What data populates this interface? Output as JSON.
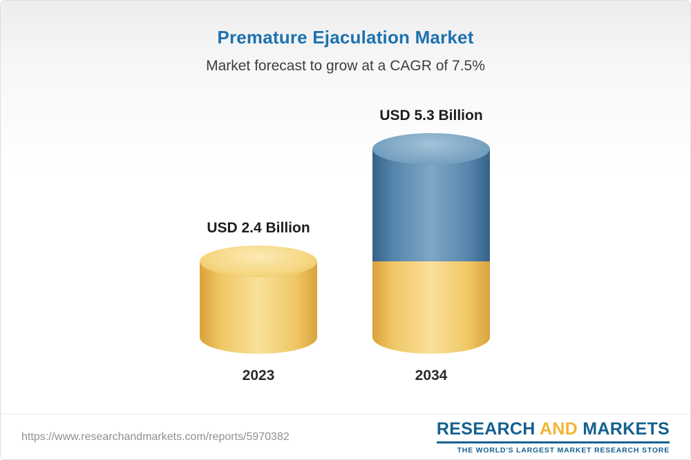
{
  "header": {
    "title": "Premature Ejaculation Market",
    "subtitle": "Market forecast to grow at a CAGR of 7.5%"
  },
  "chart_data": {
    "type": "bar",
    "title": "Premature Ejaculation Market",
    "subtitle": "Market forecast to grow at a CAGR of 7.5%",
    "unit": "USD Billion",
    "cagr_percent": 7.5,
    "categories": [
      "2023",
      "2034"
    ],
    "values": [
      2.4,
      5.3
    ],
    "ylim": [
      0,
      5.5
    ],
    "grid": false,
    "legend": "none",
    "bars": [
      {
        "year": "2023",
        "label": "USD 2.4 Billion",
        "value": 2.4,
        "segments": [
          {
            "name": "base",
            "value": 2.4,
            "color": "#f2c960"
          }
        ]
      },
      {
        "year": "2034",
        "label": "USD 5.3 Billion",
        "value": 5.3,
        "segments": [
          {
            "name": "base-2023-level",
            "value": 2.4,
            "color": "#f2c960"
          },
          {
            "name": "growth",
            "value": 2.9,
            "color": "#4d7fa8"
          }
        ]
      }
    ]
  },
  "footer": {
    "url": "https://www.researchandmarkets.com/reports/5970382",
    "logo": {
      "research": "RESEARCH",
      "and": "AND",
      "markets": "MARKETS",
      "tagline": "THE WORLD'S LARGEST MARKET RESEARCH STORE"
    }
  },
  "colors": {
    "title": "#1d72ae",
    "subtitle": "#3d3d3d",
    "bar_gold": "#f2c960",
    "bar_blue": "#4d7fa8",
    "logo_blue": "#14608f",
    "logo_gold": "#f2b434",
    "url_text": "#8f8f8f"
  }
}
